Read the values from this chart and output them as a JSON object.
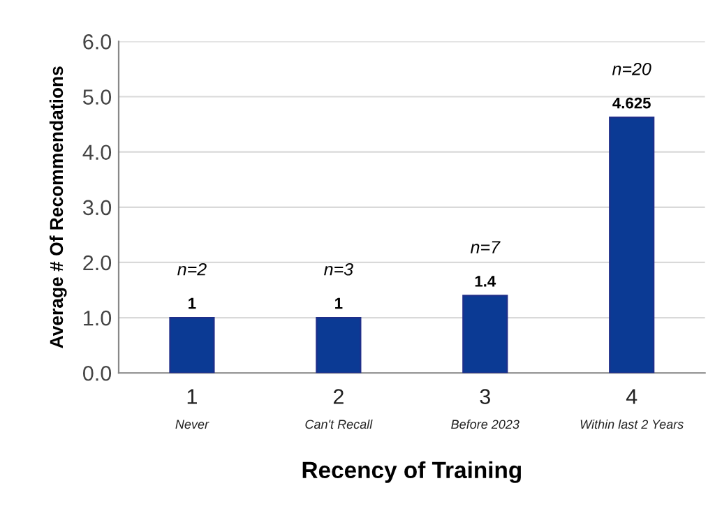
{
  "chart_data": {
    "type": "bar",
    "xlabel": "Recency of Training",
    "ylabel": "Average # Of Recommendations",
    "categories": [
      "1\nNever",
      "2\nCan't Recall",
      "3\nBefore 2023",
      "4\nWithin last 2 Years"
    ],
    "values": [
      1,
      1,
      1.4,
      4.625
    ],
    "color": "#0b3a94",
    "data_labels": true,
    "ylim": [
      0,
      6
    ],
    "yticks": [
      {
        "value": 0,
        "label": "0.0"
      },
      {
        "value": 1,
        "label": "1.0"
      },
      {
        "value": 2,
        "label": "2.0"
      },
      {
        "value": 3,
        "label": "3.0"
      },
      {
        "value": 4,
        "label": "4.0"
      },
      {
        "value": 5,
        "label": "5.0"
      },
      {
        "value": 6,
        "label": "6.0"
      }
    ],
    "grid": "y",
    "legend": false,
    "annotations": [
      "n=2",
      "n=3",
      "n=7",
      "n=20"
    ]
  }
}
